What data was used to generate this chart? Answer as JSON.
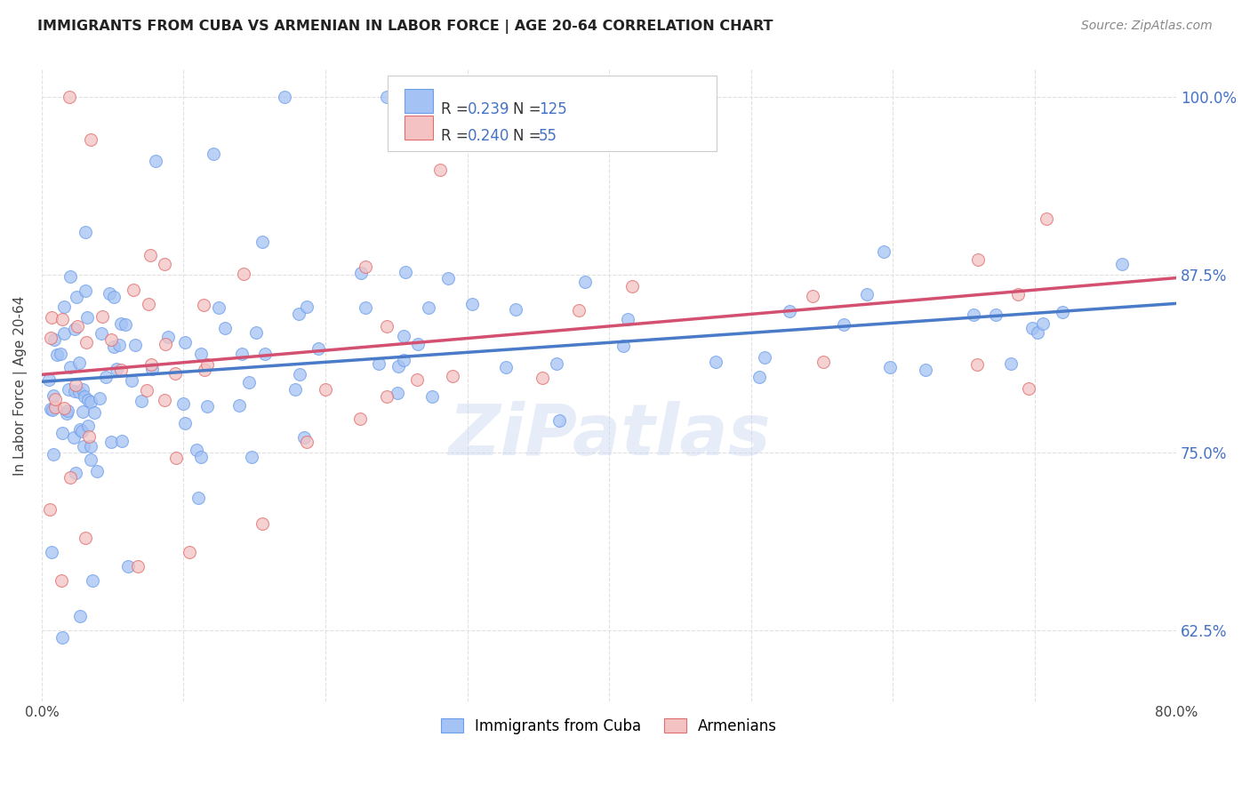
{
  "title": "IMMIGRANTS FROM CUBA VS ARMENIAN IN LABOR FORCE | AGE 20-64 CORRELATION CHART",
  "source": "Source: ZipAtlas.com",
  "ylabel": "In Labor Force | Age 20-64",
  "yticks": [
    "62.5%",
    "75.0%",
    "87.5%",
    "100.0%"
  ],
  "ytick_vals": [
    0.625,
    0.75,
    0.875,
    1.0
  ],
  "xlim": [
    0.0,
    0.8
  ],
  "ylim": [
    0.575,
    1.02
  ],
  "cuba_color": "#a4c2f4",
  "armenian_color": "#f4c2c2",
  "cuba_edge_color": "#6d9eeb",
  "armenian_edge_color": "#e06c6c",
  "cuba_line_color": "#4a7bc8",
  "armenian_line_color": "#d45070",
  "watermark": "ZiPatlas",
  "grid_color": "#e0e0e0",
  "background_color": "#ffffff",
  "legend_blue": "#4472c4",
  "legend_pink": "#e06c8c",
  "cuba_R": "0.239",
  "cuba_N": "125",
  "armenia_R": "0.240",
  "armenia_N": "55",
  "trend_cuba_x0": 0.0,
  "trend_cuba_y0": 0.8,
  "trend_cuba_x1": 0.8,
  "trend_cuba_y1": 0.855,
  "trend_arm_x0": 0.0,
  "trend_arm_y0": 0.805,
  "trend_arm_x1": 0.8,
  "trend_arm_y1": 0.873
}
